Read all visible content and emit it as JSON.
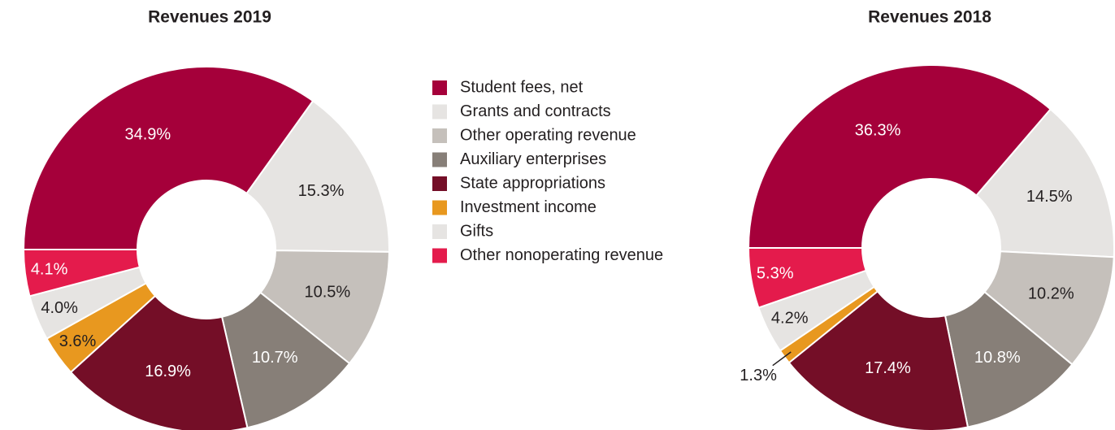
{
  "legend": [
    {
      "name": "Student fees, net",
      "color": "#a5003a"
    },
    {
      "name": "Grants and contracts",
      "color": "#e6e4e2"
    },
    {
      "name": "Other operating revenue",
      "color": "#c5c0bb"
    },
    {
      "name": "Auxiliary enterprises",
      "color": "#877f78"
    },
    {
      "name": "State appropriations",
      "color": "#740e27"
    },
    {
      "name": "Investment income",
      "color": "#e8981f"
    },
    {
      "name": "Gifts",
      "color": "#e6e4e2"
    },
    {
      "name": "Other nonoperating revenue",
      "color": "#e41b4c"
    }
  ],
  "chart_data": [
    {
      "type": "donut",
      "title": "Revenues 2019",
      "values": [
        34.9,
        15.3,
        10.5,
        10.7,
        16.9,
        3.6,
        4.0,
        4.1
      ],
      "value_labels": [
        "34.9%",
        "15.3%",
        "10.5%",
        "10.7%",
        "16.9%",
        "3.6%",
        "4.0%",
        "4.1%"
      ]
    },
    {
      "type": "donut",
      "title": "Revenues 2018",
      "values": [
        36.3,
        14.5,
        10.2,
        10.8,
        17.4,
        1.3,
        4.2,
        5.3
      ],
      "value_labels": [
        "36.3%",
        "14.5%",
        "10.2%",
        "10.8%",
        "17.4%",
        "1.3%",
        "4.2%",
        "5.3%"
      ]
    }
  ]
}
